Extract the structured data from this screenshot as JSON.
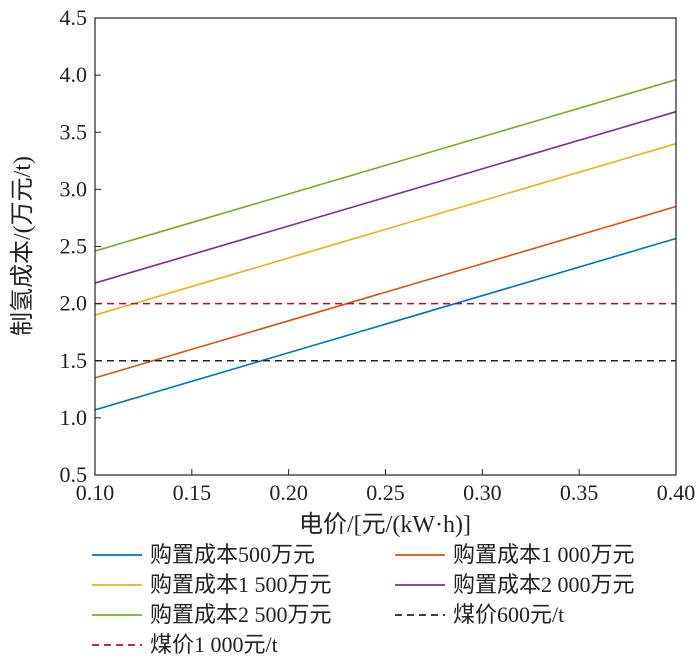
{
  "chart_data": {
    "type": "line",
    "title": "",
    "xlabel": "电价/[元/(kW·h)]",
    "ylabel": "制氢成本/(万元/t)",
    "xlim": [
      0.1,
      0.4
    ],
    "ylim": [
      0.5,
      4.5
    ],
    "xticks": [
      "0.10",
      "0.15",
      "0.20",
      "0.25",
      "0.30",
      "0.35",
      "0.40"
    ],
    "yticks": [
      "0.5",
      "1.0",
      "1.5",
      "2.0",
      "2.5",
      "3.0",
      "3.5",
      "4.0",
      "4.5"
    ],
    "grid": false,
    "legend_position": "bottom",
    "x": [
      0.1,
      0.4
    ],
    "series": [
      {
        "name": "购置成本500万元",
        "values": [
          1.07,
          2.57
        ],
        "color": "#0072BD",
        "dash": false
      },
      {
        "name": "购置成本1 000万元",
        "values": [
          1.35,
          2.85
        ],
        "color": "#D95319",
        "dash": false
      },
      {
        "name": "购置成本1 500万元",
        "values": [
          1.9,
          3.4
        ],
        "color": "#EDB120",
        "dash": false
      },
      {
        "name": "购置成本2 000万元",
        "values": [
          2.18,
          3.68
        ],
        "color": "#7E2F8E",
        "dash": false
      },
      {
        "name": "购置成本2 500万元",
        "values": [
          2.46,
          3.96
        ],
        "color": "#77AC30",
        "dash": false
      },
      {
        "name": "煤价600元/t",
        "values": [
          1.5,
          1.5
        ],
        "color": "#222222",
        "dash": true
      },
      {
        "name": "煤价1 000元/t",
        "values": [
          2.0,
          2.0
        ],
        "color": "#A2142F",
        "dash": true
      }
    ]
  }
}
